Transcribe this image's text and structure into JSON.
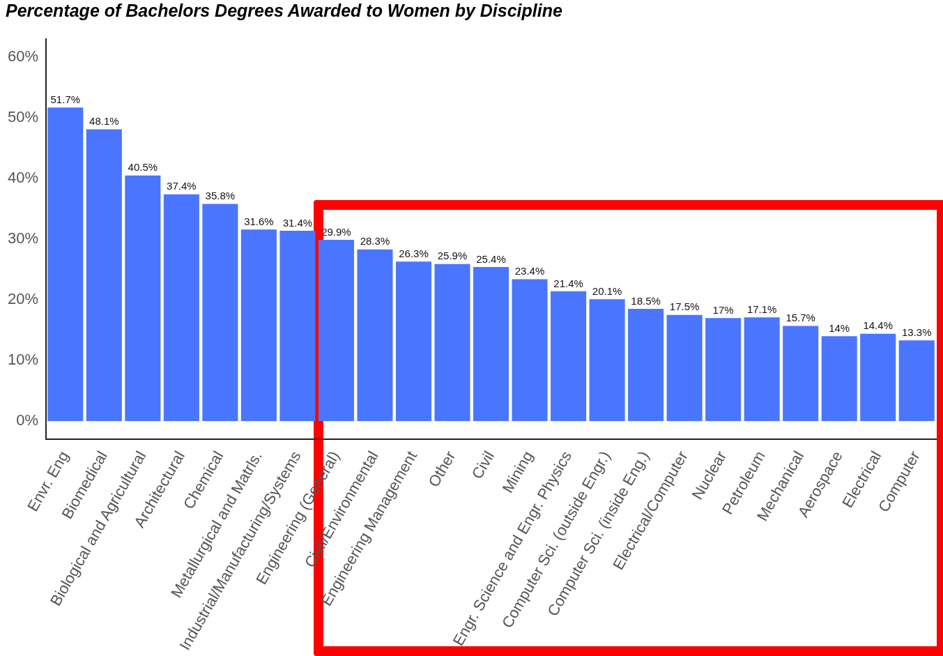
{
  "chart_data": {
    "type": "bar",
    "title": "Percentage of Bachelors Degrees Awarded to Women by Discipline",
    "categories": [
      "Envr. Eng",
      "Biomedical",
      "Biological and Agricultural",
      "Architectural",
      "Chemical",
      "Metallurgical and Matrls.",
      "Industrial/Manufacturing/Systems",
      "Engineering (General)",
      "Civil/Environmental",
      "Engineering Management",
      "Other",
      "Civil",
      "Mining",
      "Engr. Science and Engr. Physics",
      "Computer Sci. (outside Engr.)",
      "Computer Sci. (inside Eng.)",
      "Electrical/Computer",
      "Nuclear",
      "Petroleum",
      "Mechanical",
      "Aerospace",
      "Electrical",
      "Computer"
    ],
    "values": [
      51.7,
      48.1,
      40.5,
      37.4,
      35.8,
      31.6,
      31.4,
      29.9,
      28.3,
      26.3,
      25.9,
      25.4,
      23.4,
      21.4,
      20.1,
      18.5,
      17.5,
      17,
      17.1,
      15.7,
      14,
      14.4,
      13.3
    ],
    "value_labels": [
      "51.7%",
      "48.1%",
      "40.5%",
      "37.4%",
      "35.8%",
      "31.6%",
      "31.4%",
      "29.9%",
      "28.3%",
      "26.3%",
      "25.9%",
      "25.4%",
      "23.4%",
      "21.4%",
      "20.1%",
      "18.5%",
      "17.5%",
      "17%",
      "17.1%",
      "15.7%",
      "14%",
      "14.4%",
      "13.3%"
    ],
    "color": "#4a76ff",
    "ylim": [
      -3,
      63
    ],
    "yticks": [
      {
        "value": 0,
        "label": "0%"
      },
      {
        "value": 10,
        "label": "10%"
      },
      {
        "value": 20,
        "label": "20%"
      },
      {
        "value": 30,
        "label": "30%"
      },
      {
        "value": 40,
        "label": "40%"
      },
      {
        "value": 50,
        "label": "50%"
      },
      {
        "value": 60,
        "label": "60%"
      }
    ],
    "grid": false,
    "legend": false
  }
}
